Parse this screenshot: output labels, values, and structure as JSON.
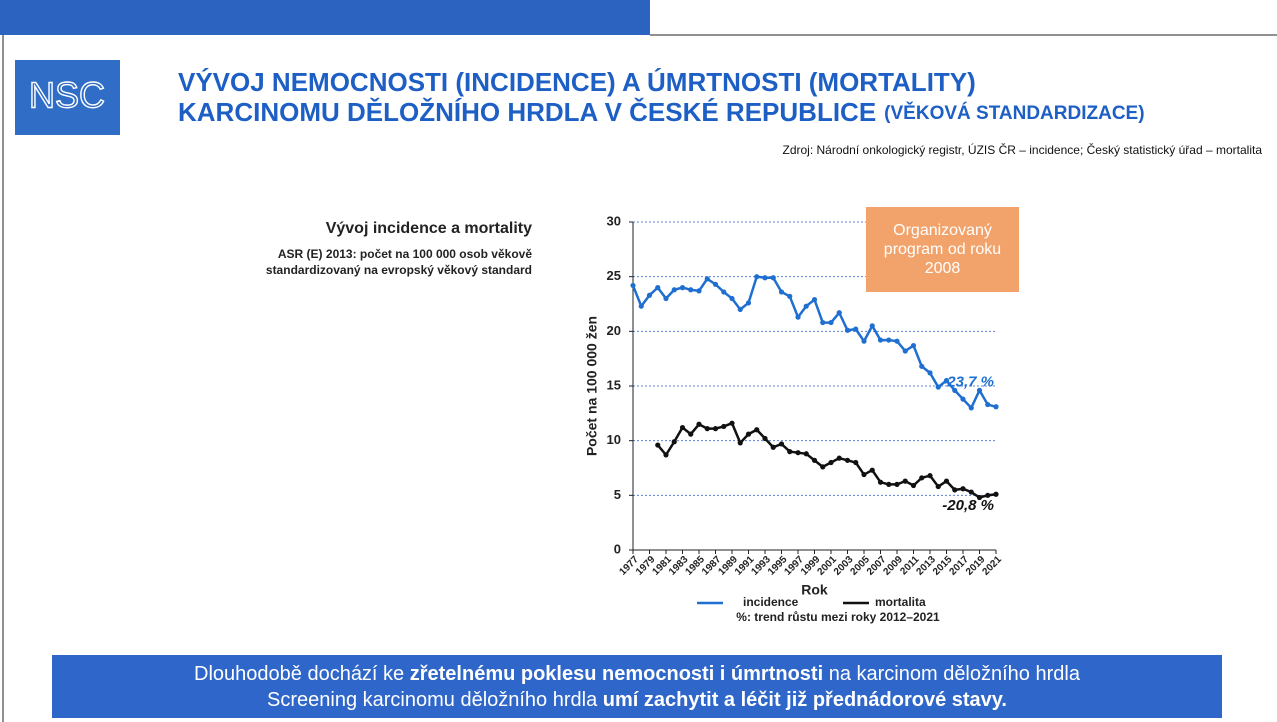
{
  "slide": {
    "logo": "NSC",
    "title_line1": "VÝVOJ NEMOCNOSTI (INCIDENCE) A ÚMRTNOSTI (MORTALITY)",
    "title_line2": "KARCINOMU DĚLOŽNÍHO HRDLA V ČESKÉ REPUBLICE",
    "title_note": "(VĚKOVÁ STANDARDIZACE)",
    "source": "Zdroj: Národní onkologický registr, ÚZIS ČR – incidence; Český statistický úřad – mortalita",
    "chart_heading": "Vývoj incidence a mortality",
    "chart_subheading_line1": "ASR (E) 2013: počet na 100 000 osob věkově",
    "chart_subheading_line2": "standardizovaný na evropský věkový standard",
    "banner_line1": [
      "Dlouhodobě dochází ke ",
      "zřetelnému poklesu nemocnosti i úmrtnosti",
      " na karcinom děložního hrdla"
    ],
    "banner_line2": [
      "Screening karcinomu děložního hrdla ",
      "umí zachytit a léčit již přednádorové stavy."
    ]
  },
  "chart_data": {
    "type": "line",
    "xlabel": "Rok",
    "ylabel": "Počet na 100 000 žen",
    "x": [
      1977,
      1978,
      1979,
      1980,
      1981,
      1982,
      1983,
      1984,
      1985,
      1986,
      1987,
      1988,
      1989,
      1990,
      1991,
      1992,
      1993,
      1994,
      1995,
      1996,
      1997,
      1998,
      1999,
      2000,
      2001,
      2002,
      2003,
      2004,
      2005,
      2006,
      2007,
      2008,
      2009,
      2010,
      2011,
      2012,
      2013,
      2014,
      2015,
      2016,
      2017,
      2018,
      2019,
      2020,
      2021
    ],
    "series": [
      {
        "name": "incidence",
        "color": "#1f6fd1",
        "values": [
          24.2,
          22.3,
          23.3,
          24.0,
          23.0,
          23.8,
          24.0,
          23.8,
          23.7,
          24.8,
          24.3,
          23.6,
          23.0,
          22.0,
          22.6,
          25.0,
          24.9,
          24.9,
          23.6,
          23.2,
          21.3,
          22.3,
          22.9,
          20.8,
          20.8,
          21.7,
          20.1,
          20.2,
          19.1,
          20.5,
          19.2,
          19.2,
          19.1,
          18.2,
          18.7,
          16.8,
          16.2,
          14.9,
          15.5,
          14.6,
          13.8,
          13.0,
          14.6,
          13.3,
          13.1
        ]
      },
      {
        "name": "mortalita",
        "color": "#111111",
        "values": [
          null,
          null,
          null,
          9.6,
          8.7,
          9.9,
          11.2,
          10.6,
          11.5,
          11.1,
          11.1,
          11.3,
          11.6,
          9.8,
          10.6,
          11.0,
          10.2,
          9.4,
          9.7,
          9.0,
          8.9,
          8.8,
          8.2,
          7.6,
          8.0,
          8.4,
          8.2,
          8.0,
          6.9,
          7.3,
          6.2,
          6.0,
          6.0,
          6.3,
          5.9,
          6.6,
          6.8,
          5.8,
          6.3,
          5.5,
          5.6,
          5.3,
          4.8,
          5.0,
          5.1
        ]
      }
    ],
    "xlim": [
      1977,
      2021
    ],
    "xticks": [
      1977,
      1979,
      1981,
      1983,
      1985,
      1987,
      1989,
      1991,
      1993,
      1995,
      1997,
      1999,
      2001,
      2003,
      2005,
      2007,
      2009,
      2011,
      2013,
      2015,
      2017,
      2019,
      2021
    ],
    "ylim": [
      0,
      30
    ],
    "yticks": [
      0,
      5,
      10,
      15,
      20,
      25,
      30
    ],
    "grid": true,
    "annotations": [
      "-23,7 %",
      "-20,8 %"
    ],
    "callout": "Organizovaný program od roku 2008",
    "legend_note": "%: trend růstu mezi roky 2012–2021"
  }
}
